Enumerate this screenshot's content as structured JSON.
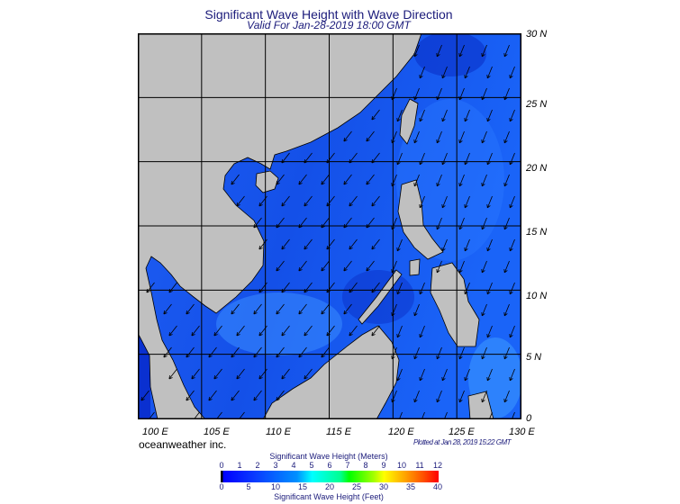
{
  "title": "Significant Wave Height with Wave Direction",
  "subtitle": "Valid For Jan-28-2019 18:00 GMT",
  "map": {
    "lat_labels": [
      "30 N",
      "25 N",
      "20 N",
      "15 N",
      "10 N",
      "5 N",
      "0"
    ],
    "lon_labels": [
      "100 E",
      "105 E",
      "110 E",
      "115 E",
      "120 E",
      "125 E",
      "130 E"
    ],
    "lon_range": [
      100,
      130
    ],
    "lat_range": [
      0,
      30
    ],
    "land_color": "#c0c0c0",
    "ocean_colors": [
      "#0a36d8",
      "#1a5cf0",
      "#2a80ff"
    ],
    "arrow_direction": "southwest",
    "grid": true
  },
  "credit": "oceanweather inc.",
  "plotted": "Plotted at Jan 28, 2019 15:22 GMT",
  "colorbar": {
    "meters_title": "Significant Wave Height (Meters)",
    "meters_ticks": [
      "0",
      "1",
      "2",
      "3",
      "4",
      "5",
      "6",
      "7",
      "8",
      "9",
      "10",
      "11",
      "12"
    ],
    "feet_ticks": [
      "0",
      "5",
      "10",
      "15",
      "20",
      "25",
      "30",
      "35",
      "40"
    ],
    "feet_title": "Significant Wave Height (Feet)"
  }
}
